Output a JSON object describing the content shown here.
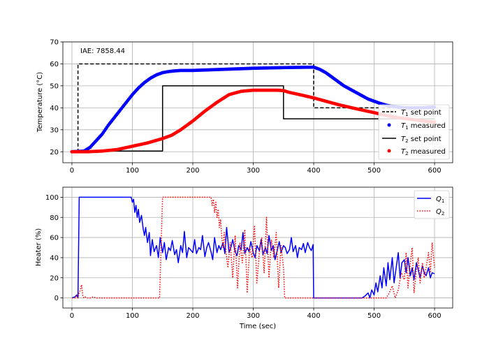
{
  "chart_data": [
    {
      "type": "line",
      "xlim": [
        -15,
        630
      ],
      "ylim": [
        15,
        70
      ],
      "ylabel": "Temperature (°C)",
      "xticks": [
        0,
        100,
        200,
        300,
        400,
        500,
        600
      ],
      "yticks": [
        20,
        30,
        40,
        50,
        60,
        70
      ],
      "grid": true,
      "legend_position": "lower-right",
      "annotation": "IAE: 7858.44",
      "series": [
        {
          "name": "T1 set point",
          "style": "dashed",
          "color": "#000000",
          "kind": "step",
          "x": [
            0,
            10,
            10,
            400,
            400,
            600
          ],
          "y": [
            20,
            20,
            60,
            60,
            40,
            40
          ]
        },
        {
          "name": "T1 measured",
          "style": "dots",
          "color": "#0000ff",
          "x": [
            0,
            20,
            30,
            40,
            50,
            60,
            70,
            80,
            90,
            100,
            110,
            120,
            130,
            140,
            150,
            160,
            170,
            180,
            200,
            250,
            300,
            350,
            400,
            410,
            420,
            430,
            440,
            450,
            460,
            470,
            480,
            490,
            500,
            510,
            520,
            530,
            540,
            550,
            560,
            570,
            580,
            590,
            600
          ],
          "y": [
            20,
            20.3,
            22,
            25,
            28,
            32,
            35.5,
            39,
            42.5,
            46,
            49,
            51.5,
            53.5,
            55,
            56,
            56.5,
            56.8,
            57,
            57,
            57.5,
            58,
            58.3,
            58.5,
            57.5,
            56,
            54,
            52,
            50,
            48.5,
            47,
            45.5,
            44,
            43,
            42,
            41.2,
            40.7,
            40.3,
            40,
            40,
            40,
            40,
            40.2,
            40.3
          ]
        },
        {
          "name": "T2 set point",
          "style": "solid",
          "color": "#000000",
          "kind": "step",
          "x": [
            0,
            150,
            150,
            350,
            350,
            600
          ],
          "y": [
            20.3,
            20.3,
            50,
            50,
            35,
            35
          ]
        },
        {
          "name": "T2 measured",
          "style": "dots",
          "color": "#ff0000",
          "x": [
            0,
            25,
            50,
            75,
            100,
            125,
            150,
            165,
            180,
            200,
            220,
            240,
            260,
            280,
            300,
            320,
            340,
            350,
            360,
            380,
            400,
            420,
            440,
            460,
            480,
            500,
            520,
            540,
            560,
            580,
            600
          ],
          "y": [
            20,
            20,
            20.3,
            21,
            22.5,
            24,
            26,
            27.5,
            30,
            34,
            38.5,
            42.5,
            46,
            47.5,
            48,
            48,
            48,
            47.8,
            47,
            45.8,
            44.5,
            43,
            41.5,
            40.2,
            39,
            37.8,
            36.5,
            35.5,
            34.8,
            34,
            33.5
          ]
        }
      ],
      "legend": [
        "T1 set point",
        "T1 measured",
        "T2 set point",
        "T2 measured"
      ]
    },
    {
      "type": "line",
      "xlim": [
        -15,
        630
      ],
      "ylim": [
        -10,
        110
      ],
      "xlabel": "Time (sec)",
      "ylabel": "Heater (%)",
      "xticks": [
        0,
        100,
        200,
        300,
        400,
        500,
        600
      ],
      "yticks": [
        0,
        20,
        40,
        60,
        80,
        100
      ],
      "grid": true,
      "legend_position": "upper-right",
      "series": [
        {
          "name": "Q1",
          "style": "solid",
          "color": "#0000ff",
          "x": [
            0,
            5,
            8,
            10,
            12,
            14,
            98,
            100,
            102,
            104,
            106,
            108,
            110,
            112,
            115,
            118,
            120,
            122,
            125,
            128,
            130,
            133,
            136,
            140,
            143,
            146,
            150,
            153,
            156,
            160,
            163,
            166,
            170,
            173,
            176,
            180,
            183,
            186,
            190,
            193,
            196,
            200,
            203,
            206,
            210,
            213,
            216,
            220,
            223,
            226,
            230,
            233,
            236,
            240,
            243,
            246,
            250,
            253,
            256,
            260,
            263,
            266,
            270,
            273,
            276,
            280,
            283,
            286,
            290,
            293,
            296,
            300,
            303,
            306,
            310,
            313,
            316,
            320,
            323,
            326,
            330,
            333,
            336,
            340,
            343,
            346,
            350,
            353,
            356,
            360,
            363,
            366,
            370,
            373,
            376,
            380,
            383,
            386,
            390,
            393,
            396,
            399,
            400,
            401,
            480,
            485,
            490,
            493,
            496,
            500,
            503,
            506,
            510,
            513,
            516,
            520,
            523,
            526,
            530,
            533,
            536,
            540,
            543,
            546,
            550,
            553,
            556,
            560,
            563,
            566,
            570,
            573,
            576,
            580,
            583,
            586,
            590,
            593,
            596,
            600
          ],
          "y": [
            0,
            1,
            3,
            0,
            100,
            100,
            100,
            95,
            98,
            85,
            92,
            80,
            88,
            75,
            82,
            68,
            62,
            70,
            55,
            65,
            42,
            58,
            46,
            52,
            40,
            60,
            45,
            55,
            38,
            50,
            47,
            57,
            43,
            48,
            35,
            52,
            45,
            66,
            40,
            50,
            48,
            45,
            58,
            44,
            50,
            48,
            62,
            41,
            50,
            55,
            46,
            38,
            60,
            45,
            52,
            48,
            55,
            44,
            70,
            45,
            50,
            58,
            46,
            42,
            52,
            48,
            65,
            44,
            50,
            46,
            56,
            45,
            40,
            52,
            47,
            58,
            43,
            50,
            44,
            62,
            47,
            52,
            38,
            48,
            56,
            45,
            52,
            50,
            44,
            48,
            60,
            46,
            52,
            40,
            50,
            48,
            54,
            45,
            55,
            50,
            47,
            53,
            0,
            0,
            0,
            2,
            5,
            0,
            8,
            3,
            15,
            6,
            22,
            10,
            30,
            12,
            35,
            18,
            40,
            15,
            28,
            45,
            20,
            35,
            38,
            25,
            40,
            22,
            30,
            18,
            35,
            28,
            20,
            32,
            25,
            22,
            30,
            20,
            25,
            24
          ]
        },
        {
          "name": "Q2",
          "style": "dotted",
          "color": "#ff0000",
          "x": [
            0,
            5,
            8,
            10,
            12,
            14,
            16,
            18,
            20,
            22,
            25,
            30,
            35,
            40,
            145,
            150,
            152,
            230,
            232,
            234,
            236,
            238,
            240,
            242,
            244,
            246,
            248,
            250,
            252,
            255,
            258,
            262,
            266,
            270,
            274,
            278,
            282,
            286,
            290,
            294,
            298,
            302,
            306,
            310,
            314,
            318,
            322,
            326,
            330,
            334,
            338,
            342,
            346,
            350,
            352,
            440,
            520,
            525,
            530,
            535,
            540,
            545,
            550,
            553,
            556,
            560,
            563,
            566,
            570,
            573,
            576,
            580,
            583,
            586,
            590,
            593,
            596,
            600
          ],
          "y": [
            0,
            0,
            2,
            0,
            5,
            8,
            13,
            2,
            0,
            1,
            0,
            0,
            1,
            0,
            0,
            100,
            100,
            100,
            92,
            98,
            85,
            95,
            80,
            88,
            70,
            78,
            60,
            50,
            65,
            45,
            30,
            55,
            20,
            62,
            10,
            55,
            35,
            68,
            5,
            50,
            40,
            72,
            15,
            45,
            60,
            25,
            80,
            20,
            58,
            40,
            65,
            10,
            52,
            30,
            0,
            0,
            0,
            5,
            12,
            0,
            8,
            25,
            18,
            45,
            10,
            35,
            50,
            5,
            28,
            40,
            15,
            35,
            20,
            30,
            45,
            25,
            55,
            30
          ]
        }
      ],
      "legend": [
        "Q1",
        "Q2"
      ]
    }
  ]
}
